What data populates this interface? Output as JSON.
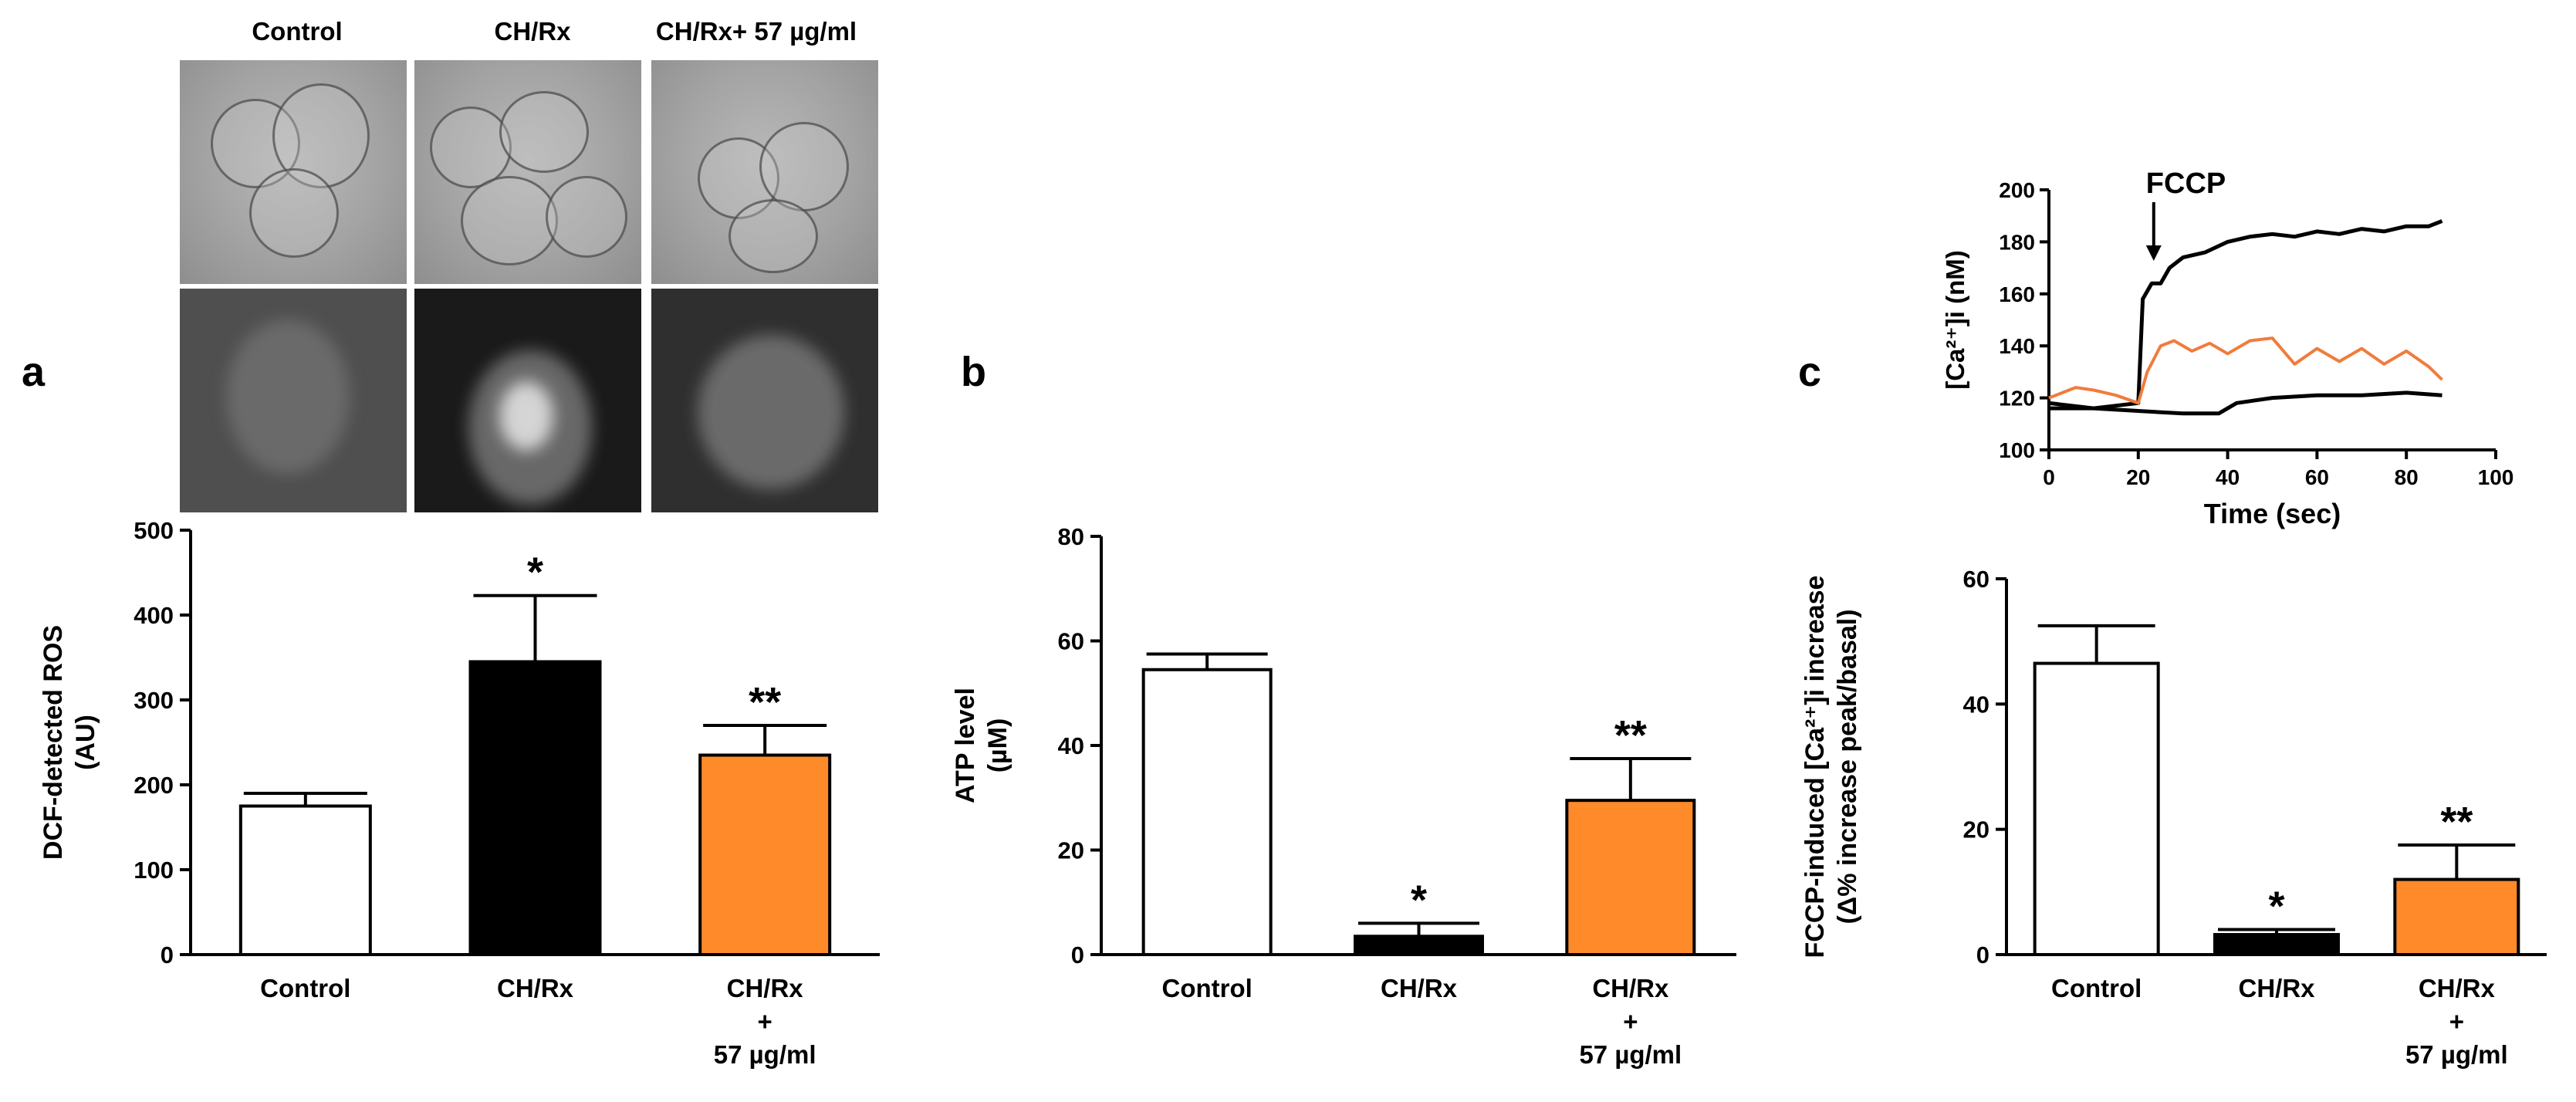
{
  "panels": {
    "a": {
      "letter": "a",
      "image_titles": [
        "Control",
        "CH/Rx",
        "CH/Rx+ 57 µg/ml"
      ]
    },
    "b": {
      "letter": "b"
    },
    "c": {
      "letter": "c"
    }
  },
  "colors": {
    "control": "#ffffff",
    "chrx": "#000000",
    "treated": "#ff8a2a",
    "trace_orange": "#f07c3c"
  },
  "chart_data": [
    {
      "id": "ros",
      "type": "bar",
      "categories": [
        [
          "Control"
        ],
        [
          "CH/Rx"
        ],
        [
          "CH/Rx",
          "+",
          "57 µg/ml"
        ]
      ],
      "values": [
        175,
        345,
        235
      ],
      "errors": [
        15,
        78,
        35
      ],
      "annotations": [
        "",
        "*",
        "**"
      ],
      "ylabel": [
        "DCF-detected ROS",
        "(AU)"
      ],
      "ylim": [
        0,
        500
      ],
      "yticks": [
        0,
        100,
        200,
        300,
        400,
        500
      ]
    },
    {
      "id": "atp",
      "type": "bar",
      "categories": [
        [
          "Control"
        ],
        [
          "CH/Rx"
        ],
        [
          "CH/Rx",
          "+",
          "57 µg/ml"
        ]
      ],
      "values": [
        54.5,
        3.5,
        29.5
      ],
      "errors": [
        3,
        2.5,
        8
      ],
      "annotations": [
        "",
        "*",
        "**"
      ],
      "ylabel": [
        "ATP level",
        "(µM)"
      ],
      "ylim": [
        0,
        80
      ],
      "yticks": [
        0,
        20,
        40,
        60,
        80
      ]
    },
    {
      "id": "fccp_bar",
      "type": "bar",
      "categories": [
        [
          "Control"
        ],
        [
          "CH/Rx"
        ],
        [
          "CH/Rx",
          "+",
          "57 µg/ml"
        ]
      ],
      "values": [
        46.5,
        3.2,
        12
      ],
      "errors": [
        6,
        0.8,
        5.5
      ],
      "annotations": [
        "",
        "*",
        "**"
      ],
      "ylabel": [
        "FCCP-induced [Ca²⁺]i increase",
        "(Δ% increase peak/basal)"
      ],
      "ylim": [
        0,
        60
      ],
      "yticks": [
        0,
        20,
        40,
        60
      ]
    },
    {
      "id": "ca_trace",
      "type": "line",
      "xlabel": "Time (sec)",
      "ylabel": "[Ca²⁺]i (nM)",
      "xlim": [
        0,
        100
      ],
      "ylim": [
        100,
        200
      ],
      "xticks": [
        0,
        20,
        40,
        60,
        80,
        100
      ],
      "yticks": [
        100,
        120,
        140,
        160,
        180,
        200
      ],
      "annotation": "FCCP",
      "annotation_x": 20,
      "series": [
        {
          "color": "#000000",
          "x": [
            0,
            5,
            10,
            15,
            20,
            21,
            23,
            25,
            27,
            30,
            35,
            40,
            45,
            50,
            55,
            60,
            65,
            70,
            75,
            80,
            85,
            88
          ],
          "y": [
            118,
            117,
            116,
            117,
            118,
            158,
            164,
            164,
            170,
            174,
            176,
            180,
            182,
            183,
            182,
            184,
            183,
            185,
            184,
            186,
            186,
            188
          ]
        },
        {
          "color": "#f07c3c",
          "x": [
            0,
            3,
            6,
            10,
            15,
            20,
            22,
            25,
            28,
            32,
            36,
            40,
            45,
            50,
            55,
            60,
            65,
            70,
            75,
            80,
            85,
            88
          ],
          "y": [
            120,
            122,
            124,
            123,
            121,
            118,
            130,
            140,
            142,
            138,
            141,
            137,
            142,
            143,
            133,
            139,
            134,
            139,
            133,
            138,
            132,
            127
          ]
        },
        {
          "color": "#000000",
          "x": [
            0,
            10,
            20,
            30,
            38,
            42,
            50,
            60,
            70,
            80,
            88
          ],
          "y": [
            116,
            116,
            115,
            114,
            114,
            118,
            120,
            121,
            121,
            122,
            121
          ]
        }
      ]
    }
  ]
}
